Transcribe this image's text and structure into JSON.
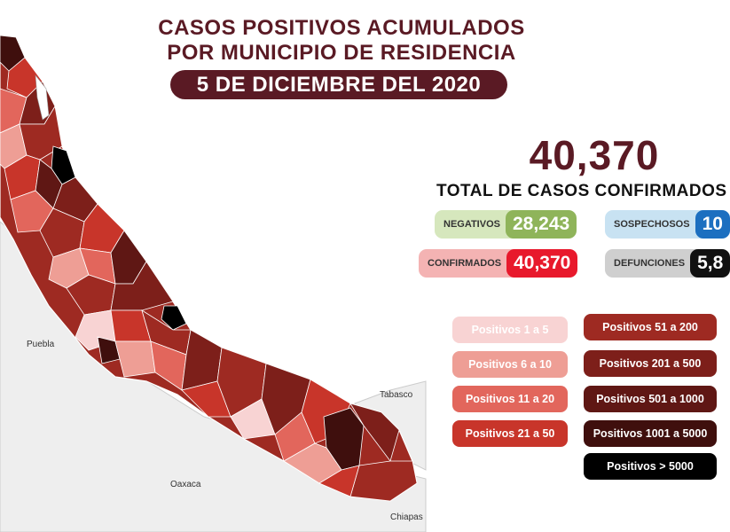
{
  "header": {
    "title_line1": "CASOS POSITIVOS ACUMULADOS",
    "title_line2": "POR MUNICIPIO DE RESIDENCIA",
    "date": "5 DE DICIEMBRE DEL 2020"
  },
  "summary": {
    "total_cases": "40,370",
    "total_label": "TOTAL DE CASOS CONFIRMADOS",
    "stats": {
      "negativos": {
        "label": "NEGATIVOS",
        "value": "28,243",
        "accent": "#8fb45a"
      },
      "confirmados": {
        "label": "CONFIRMADOS",
        "value": "40,370",
        "accent": "#e8192c"
      },
      "sospechosos": {
        "label": "SOSPECHOSOS",
        "value": "10",
        "accent": "#1c6fc0"
      },
      "defunciones": {
        "label": "DEFUNCIONES",
        "value": "5,8",
        "accent": "#111111"
      }
    }
  },
  "legend": {
    "left": [
      {
        "label": "Positivos 1 a 5",
        "color": "#f8d3d3"
      },
      {
        "label": "Positivos 6 a 10",
        "color": "#ee9e95"
      },
      {
        "label": "Positivos 11 a 20",
        "color": "#e2665c"
      },
      {
        "label": "Positivos 21 a 50",
        "color": "#c8352a"
      }
    ],
    "right": [
      {
        "label": "Positivos 51 a 200",
        "color": "#9e2a22"
      },
      {
        "label": "Positivos 201 a 500",
        "color": "#7d1f1a"
      },
      {
        "label": "Positivos 501 a 1000",
        "color": "#5f1714"
      },
      {
        "label": "Positivos 1001 a 5000",
        "color": "#3f0f0d"
      },
      {
        "label": "Positivos > 5000",
        "color": "#000000"
      }
    ]
  },
  "map": {
    "neighbor_states": [
      "Puebla",
      "Oaxaca",
      "Tabasco",
      "Chiapas"
    ],
    "neighbor_fill": "#eeeeee",
    "border_color": "#ffffff"
  }
}
